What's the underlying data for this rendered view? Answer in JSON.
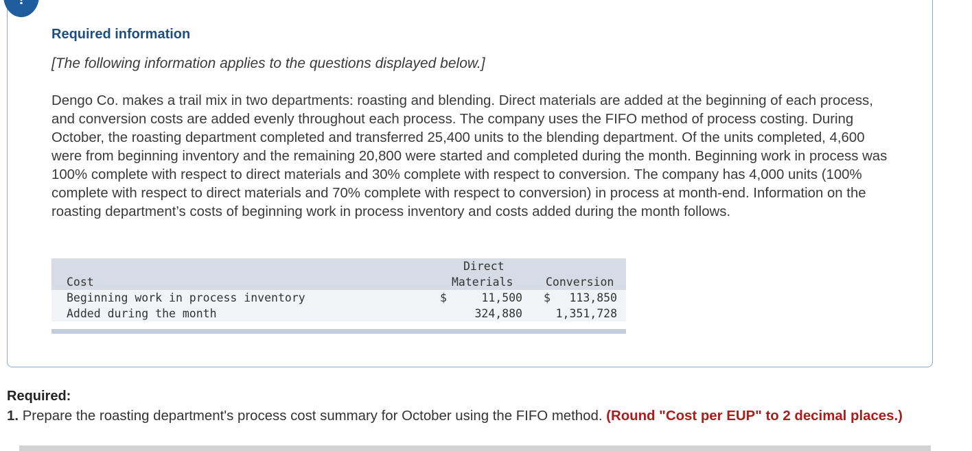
{
  "card": {
    "heading": "Required information",
    "note": "[The following information applies to the questions displayed below.]",
    "paragraph": "Dengo Co. makes a trail mix in two departments: roasting and blending. Direct materials are added at the beginning of each process, and conversion costs are added evenly throughout each process. The company uses the FIFO method of process costing. During October, the roasting department completed and transferred 25,400 units to the blending department. Of the units completed, 4,600 were from beginning inventory and the remaining 20,800 were started and completed during the month. Beginning work in process was 100% complete with respect to direct materials and 30% complete with respect to conversion. The company has 4,000 units (100% complete with respect to direct materials and 70% complete with respect to conversion) in process at month-end. Information on the roasting department’s costs of beginning work in process inventory and costs added during the month follows.",
    "alert_symbol": "!"
  },
  "table": {
    "header": {
      "cost": "Cost",
      "dm_line1": "Direct",
      "dm_line2": "Materials",
      "conversion": "Conversion"
    },
    "rows": [
      {
        "label": "Beginning work in process inventory",
        "dm_currency": "$",
        "dm": "11,500",
        "conv_currency": "$",
        "conv": "113,850"
      },
      {
        "label": "Added during the month",
        "dm_currency": "",
        "dm": "324,880",
        "conv_currency": "",
        "conv": "1,351,728"
      }
    ]
  },
  "required": {
    "label": "Required:",
    "number": "1.",
    "text": "Prepare the roasting department's process cost summary for October using the FIFO method.",
    "hint": "(Round \"Cost per EUP\" to 2 decimal places.)"
  }
}
